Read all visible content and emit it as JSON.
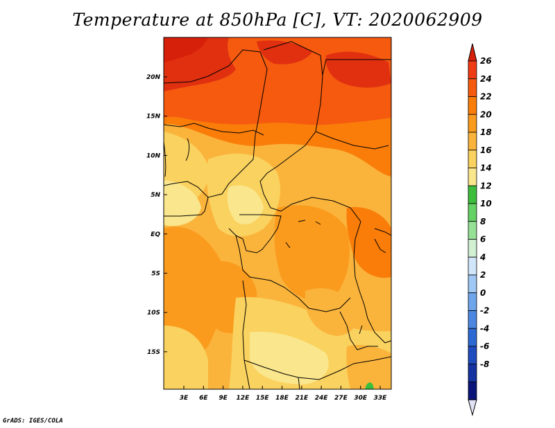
{
  "title": "Temperature at 850hPa [C], VT: 2020062909",
  "credit": "GrADS: IGES/COLA",
  "map": {
    "lon_labels": [
      "3E",
      "6E",
      "9E",
      "12E",
      "15E",
      "18E",
      "21E",
      "24E",
      "27E",
      "30E",
      "33E"
    ],
    "lat_labels": [
      "20N",
      "15N",
      "10N",
      "5N",
      "EQ",
      "5S",
      "10S",
      "15S"
    ]
  },
  "colorbar": {
    "labels": [
      "26",
      "24",
      "22",
      "20",
      "18",
      "16",
      "14",
      "12",
      "10",
      "8",
      "6",
      "4",
      "2",
      "0",
      "-2",
      "-4",
      "-6",
      "-8"
    ],
    "colors": [
      "#f03c14",
      "#f55a0f",
      "#fa7d0a",
      "#fa9b1e",
      "#fab43c",
      "#fad25f",
      "#fae68c",
      "#3cbe3c",
      "#64d264",
      "#96e196",
      "#d2f0d2",
      "#d2e6fa",
      "#a0c8f5",
      "#6ea5eb",
      "#4b87e1",
      "#2d69d2",
      "#1e4bbe",
      "#1432a0",
      "#0a1478"
    ],
    "top_color": "#d7200a",
    "bottom_color": "#e1e1f5"
  }
}
